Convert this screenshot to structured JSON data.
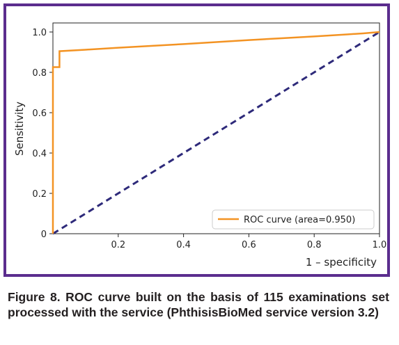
{
  "chart_data": {
    "type": "line",
    "xlabel": "1 – specificity",
    "ylabel": "Sensitivity",
    "xlim": [
      0,
      1
    ],
    "ylim": [
      0,
      1
    ],
    "xticks": [
      "0.2",
      "0.4",
      "0.6",
      "0.8",
      "1.0"
    ],
    "yticks": [
      "0",
      "0.2",
      "0.4",
      "0.6",
      "0.8",
      "1.0"
    ],
    "grid": false,
    "legend_position": "bottom-right",
    "series": [
      {
        "name": "ROC curve (area=0.950)",
        "color": "#f39323",
        "style": "solid",
        "x": [
          0,
          0,
          0.02,
          0.02,
          0.1,
          0.2,
          0.3,
          0.4,
          0.5,
          0.6,
          0.7,
          0.8,
          0.9,
          0.95,
          1.0
        ],
        "y": [
          0,
          0.826,
          0.826,
          0.905,
          0.912,
          0.922,
          0.931,
          0.94,
          0.95,
          0.96,
          0.969,
          0.978,
          0.988,
          0.993,
          1.0
        ]
      },
      {
        "color": "#2e2a7a",
        "style": "dashed",
        "x": [
          0,
          1
        ],
        "y": [
          0,
          1
        ]
      }
    ]
  },
  "caption": "Figure 8. ROC curve built on the basis of 115 examinations set processed with the service (PhthisisBioMed service version 3.2)"
}
